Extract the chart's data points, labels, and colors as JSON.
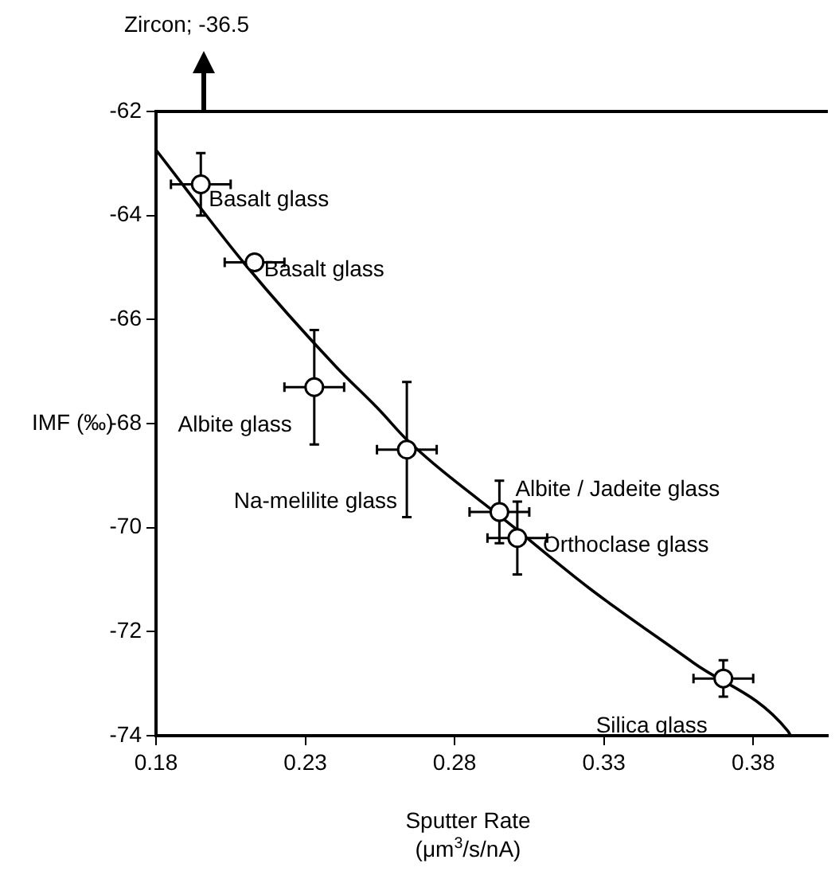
{
  "chart_data": {
    "type": "scatter",
    "xlabel": "Sputter Rate\n(μm$^{3}$/s/nA)",
    "ylabel": "IMF (‰)",
    "xlim": [
      0.18,
      0.405
    ],
    "xticks": [
      0.18,
      0.23,
      0.28,
      0.33,
      0.38
    ],
    "ylim": [
      -74,
      -62
    ],
    "yticks": [
      -74,
      -72,
      -70,
      -68,
      -66,
      -64,
      -62
    ],
    "grid": false,
    "legend": false,
    "marker": "circle",
    "series": [
      {
        "color": "#000000",
        "x": [
          0.195,
          0.213,
          0.233,
          0.264,
          0.295,
          0.301,
          0.37
        ],
        "values": [
          -63.4,
          -64.9,
          -67.3,
          -68.5,
          -69.7,
          -70.2,
          -72.9
        ],
        "errors": [
          0.6,
          null,
          1.1,
          1.3,
          0.6,
          0.7,
          0.35
        ],
        "xerrors": [
          0.01,
          0.01,
          0.01,
          0.01,
          0.01,
          0.01,
          0.01
        ]
      },
      {
        "type": "line",
        "marker": "none",
        "color": "#000000",
        "x": [
          0.18,
          0.21,
          0.24,
          0.255,
          0.264,
          0.3,
          0.325,
          0.36,
          0.3916,
          0.3925
        ],
        "values": [
          -62.74,
          -64.95,
          -66.89,
          -67.75,
          -68.31,
          -70.0,
          -71.16,
          -72.6,
          -73.91,
          -74
        ]
      }
    ],
    "annotations": [
      {
        "text": "Basalt glass",
        "x": 0.195,
        "y": -63.4
      },
      {
        "text": "Basalt glass",
        "x": 0.213,
        "y": -64.9
      },
      {
        "text": "Albite glass",
        "x": 0.233,
        "y": -67.3
      },
      {
        "text": "Na-melilite glass",
        "x": 0.264,
        "y": -68.5
      },
      {
        "text": "Albite / Jadeite glass",
        "x": 0.295,
        "y": -69.7
      },
      {
        "text": "Orthoclase glass",
        "x": 0.301,
        "y": -70.2
      },
      {
        "text": "Silica glass",
        "x": 0.37,
        "y": -72.9
      },
      "Zircon; -36.5"
    ]
  }
}
